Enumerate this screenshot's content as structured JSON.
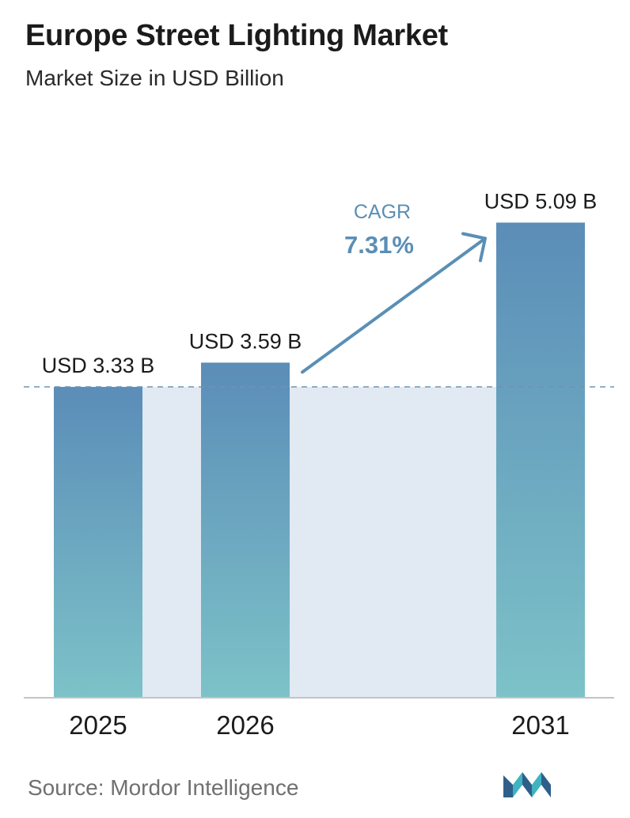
{
  "chart_data": {
    "type": "bar",
    "title": "Europe Street Lighting Market",
    "subtitle": "Market Size in USD Billion",
    "categories": [
      "2025",
      "2026",
      "2031"
    ],
    "values": [
      3.33,
      3.59,
      5.09
    ],
    "value_labels": [
      "USD 3.33 B",
      "USD 3.59 B",
      "USD 5.09 B"
    ],
    "unit": "USD Billion",
    "reference_line_value": 3.33,
    "annotation": {
      "label": "CAGR",
      "value": "7.31%"
    },
    "grid": false,
    "colors": {
      "bar_top": "#5b8db8",
      "bar_bottom": "#7dc2c8",
      "shade": "#e1e9f2",
      "cagr_text": "#5a8fb5",
      "dashed_line": "#6e93b5"
    }
  },
  "footer": {
    "source": "Source:  Mordor Intelligence"
  },
  "logo": {
    "icon": "mordor-intelligence-logo-icon",
    "colors": [
      "#2e5f8a",
      "#3fb3c0"
    ]
  }
}
